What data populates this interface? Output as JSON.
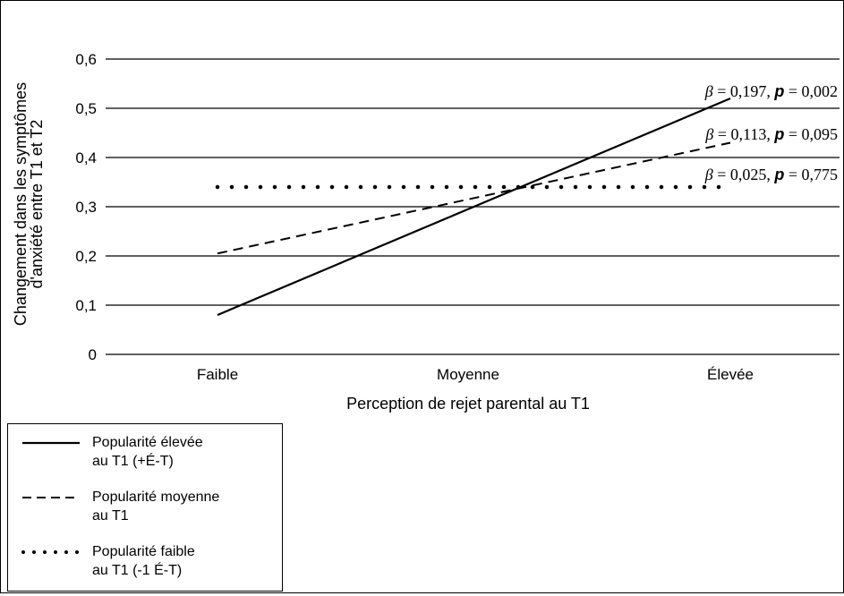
{
  "chart_data": {
    "type": "line",
    "categories": [
      "Faible",
      "Moyenne",
      "Élevée"
    ],
    "xlabel": "Perception de rejet parental au T1",
    "ylabel_lines": [
      "Changement dans les symptômes",
      "d'anxiété entre T1 et T2"
    ],
    "ylim": [
      0,
      0.6
    ],
    "y_ticks": [
      0,
      0.1,
      0.2,
      0.3,
      0.4,
      0.5,
      0.6
    ],
    "y_tick_labels": [
      "0",
      "0,1",
      "0,2",
      "0,3",
      "0,4",
      "0,5",
      "0,6"
    ],
    "grid": "horizontal",
    "legend_position": "bottom-left",
    "series": [
      {
        "name": "Popularité élevée au T1 (+É-T)",
        "legend_lines": [
          "Popularité élevée",
          "au T1 (+É-T)"
        ],
        "style": "solid",
        "x": [
          "Faible",
          "Élevée"
        ],
        "values": [
          0.08,
          0.52
        ],
        "annotation": {
          "beta": "β",
          "eq1": " = 0,197, ",
          "p": "p",
          "eq2": " = 0,002"
        }
      },
      {
        "name": "Popularité moyenne au T1",
        "legend_lines": [
          "Popularité moyenne",
          "au T1"
        ],
        "style": "dashed",
        "x": [
          "Faible",
          "Élevée"
        ],
        "values": [
          0.205,
          0.43
        ],
        "annotation": {
          "beta": "β",
          "eq1": " = 0,113, ",
          "p": "p",
          "eq2": " = 0,095"
        }
      },
      {
        "name": "Popularité faible au T1 (-1 É-T)",
        "legend_lines": [
          "Popularité faible",
          "au T1 (-1 É-T)"
        ],
        "style": "dotted",
        "x": [
          "Faible",
          "Élevée"
        ],
        "values": [
          0.34,
          0.34
        ],
        "annotation": {
          "beta": "β",
          "eq1": " = 0,025, ",
          "p": "p",
          "eq2": " = 0,775"
        }
      }
    ]
  }
}
